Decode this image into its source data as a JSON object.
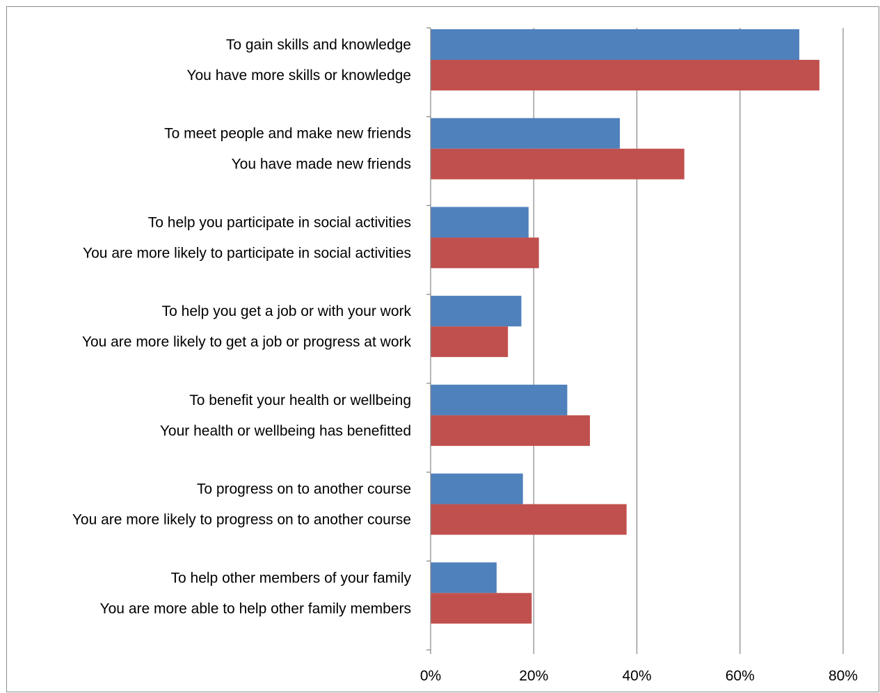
{
  "chart_data": {
    "type": "bar",
    "orientation": "horizontal",
    "categories": [
      [
        "To gain skills and knowledge",
        "You have more skills or knowledge"
      ],
      [
        "To meet people and make new friends",
        "You have made new friends"
      ],
      [
        "To help you participate in social activities",
        "You are more likely to participate in social activities"
      ],
      [
        "To help you get a job or with your work",
        "You are more likely to get a job or progress at work"
      ],
      [
        "To benefit your health or wellbeing",
        "Your health or wellbeing has benefitted"
      ],
      [
        "To progress on to another course",
        "You are more likely to progress on to another course"
      ],
      [
        "To help other members of your family",
        "You are more able to help other family members"
      ]
    ],
    "series": [
      {
        "color": "#4f81bd",
        "values": [
          71.5,
          36.7,
          19.0,
          17.6,
          26.5,
          17.9,
          12.8
        ]
      },
      {
        "color": "#c0504d",
        "values": [
          75.4,
          49.2,
          21.0,
          15.0,
          30.9,
          38.0,
          19.6
        ]
      }
    ],
    "xlim": [
      0,
      80
    ],
    "xticks": [
      0,
      20,
      40,
      60,
      80
    ],
    "xtick_labels": [
      "0%",
      "20%",
      "40%",
      "60%",
      "80%"
    ],
    "grid": true,
    "title": "",
    "xlabel": "",
    "ylabel": ""
  }
}
